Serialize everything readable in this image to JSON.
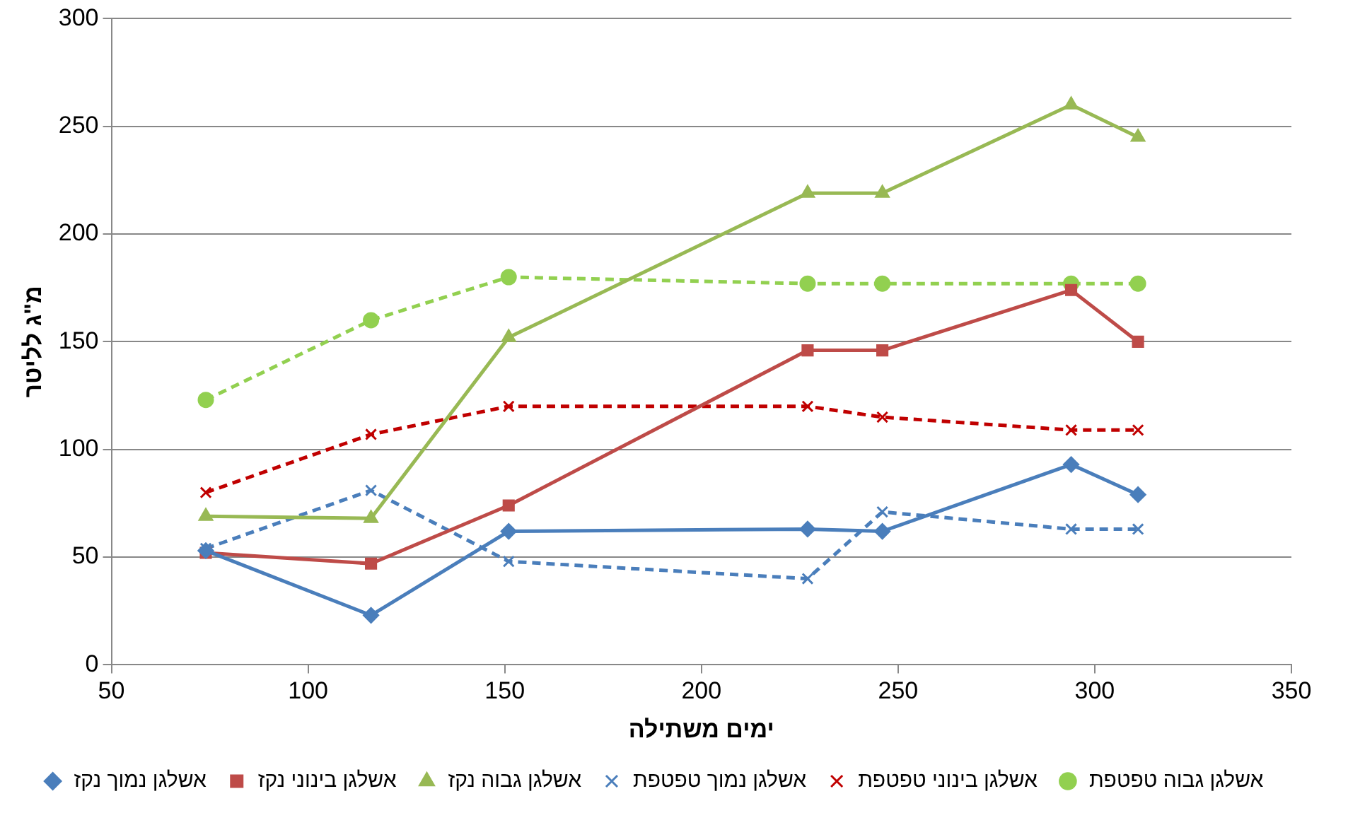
{
  "chart_data": {
    "type": "line",
    "xlabel": "ימים משתילה",
    "ylabel": "מ\"ג לליטר",
    "xlim": [
      50,
      350
    ],
    "xticks": [
      50,
      100,
      150,
      200,
      250,
      300,
      350
    ],
    "ylim": [
      0,
      300
    ],
    "yticks": [
      0,
      50,
      100,
      150,
      200,
      250,
      300
    ],
    "grid": "y",
    "legend": "bottom",
    "x": [
      74,
      116,
      151,
      227,
      246,
      294,
      311
    ],
    "series": [
      {
        "name": "אשלגן נמוך נקז",
        "color": "#4a7ebb",
        "marker": "diamond",
        "line_style": "solid",
        "values": [
          53,
          23,
          62,
          63,
          62,
          93,
          79
        ]
      },
      {
        "name": "אשלגן בינוני נקז",
        "color": "#be4b48",
        "marker": "square",
        "line_style": "solid",
        "values": [
          52,
          47,
          74,
          146,
          146,
          174,
          150
        ]
      },
      {
        "name": "אשלגן גבוה נקז",
        "color": "#98b954",
        "marker": "triangle",
        "line_style": "solid",
        "values": [
          69,
          68,
          152,
          219,
          219,
          260,
          245
        ]
      },
      {
        "name": "אשלגן נמוך טפטפת",
        "color": "#4a7ebb",
        "marker": "cross",
        "line_style": "dashed",
        "values": [
          54,
          81,
          48,
          40,
          71,
          63,
          63
        ]
      },
      {
        "name": "אשלגן בינוני טפטפת",
        "color": "#c00000",
        "marker": "cross",
        "line_style": "dashed",
        "values": [
          80,
          107,
          120,
          120,
          115,
          109,
          109
        ]
      },
      {
        "name": "אשלגן גבוה טפטפת",
        "color": "#92d050",
        "marker": "circle",
        "line_style": "dashed",
        "values": [
          123,
          160,
          180,
          177,
          177,
          177,
          177
        ]
      }
    ]
  }
}
